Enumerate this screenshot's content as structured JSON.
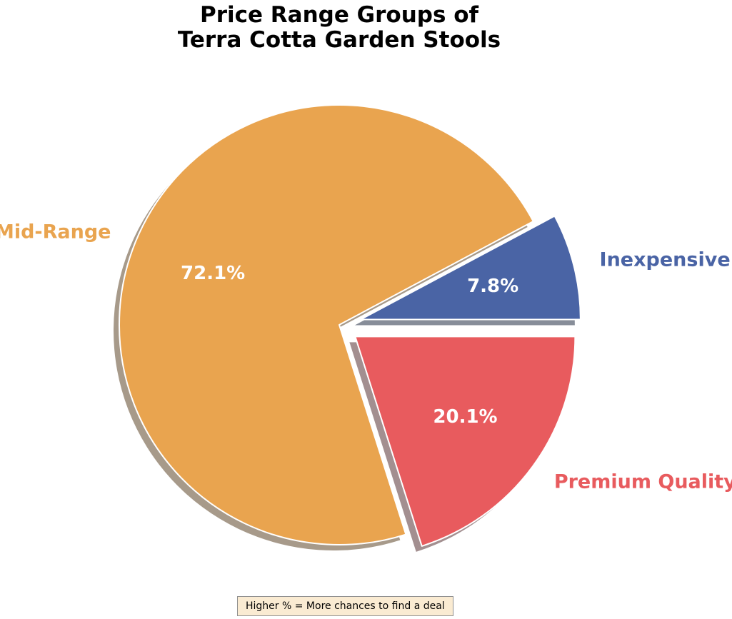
{
  "title": {
    "line1": "Price Range Groups of",
    "line2": "Terra Cotta Garden Stools"
  },
  "note": {
    "text": "Higher % = More chances to find a deal",
    "bg_color": "#FAEBD2",
    "border_color": "#8f8f8f"
  },
  "chart_data": {
    "type": "pie",
    "title": "Price Range Groups of Terra Cotta Garden Stools",
    "start_angle_deg": 0,
    "counterclockwise": true,
    "wedge_edge_color": "#ffffff",
    "pct_text_color": "#ffffff",
    "legend_position": "none",
    "annotation": "Higher % = More chances to find a deal",
    "slices": [
      {
        "label": "Inexpensive",
        "value": 7.8,
        "pct_label": "7.8%",
        "color": "#4A64A5",
        "shadow_color": "#878D99",
        "explode": 0.1
      },
      {
        "label": "Mid-Range",
        "value": 72.1,
        "pct_label": "72.1%",
        "color": "#E9A44F",
        "shadow_color": "#A79A8A",
        "explode": 0.0
      },
      {
        "label": "Premium Quality",
        "value": 20.1,
        "pct_label": "20.1%",
        "color": "#E85B5E",
        "shadow_color": "#A38F90",
        "explode": 0.09
      }
    ]
  }
}
